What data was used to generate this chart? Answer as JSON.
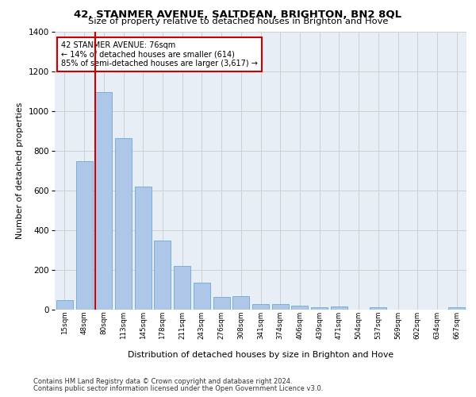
{
  "title1": "42, STANMER AVENUE, SALTDEAN, BRIGHTON, BN2 8QL",
  "title2": "Size of property relative to detached houses in Brighton and Hove",
  "xlabel": "Distribution of detached houses by size in Brighton and Hove",
  "ylabel": "Number of detached properties",
  "categories": [
    "15sqm",
    "48sqm",
    "80sqm",
    "113sqm",
    "145sqm",
    "178sqm",
    "211sqm",
    "243sqm",
    "276sqm",
    "308sqm",
    "341sqm",
    "374sqm",
    "406sqm",
    "439sqm",
    "471sqm",
    "504sqm",
    "537sqm",
    "569sqm",
    "602sqm",
    "634sqm",
    "667sqm"
  ],
  "values": [
    50,
    750,
    1095,
    865,
    620,
    350,
    220,
    135,
    65,
    70,
    30,
    30,
    20,
    13,
    15,
    0,
    12,
    0,
    0,
    0,
    12
  ],
  "bar_color": "#aec6e8",
  "bar_edge_color": "#6aaad4",
  "vline_color": "#cc0000",
  "annotation_text": "42 STANMER AVENUE: 76sqm\n← 14% of detached houses are smaller (614)\n85% of semi-detached houses are larger (3,617) →",
  "annotation_box_color": "#cc0000",
  "annotation_box_fill": "#ffffff",
  "ylim": [
    0,
    1400
  ],
  "yticks": [
    0,
    200,
    400,
    600,
    800,
    1000,
    1200,
    1400
  ],
  "grid_color": "#d0d0d0",
  "bg_color": "#e8eef5",
  "footnote1": "Contains HM Land Registry data © Crown copyright and database right 2024.",
  "footnote2": "Contains public sector information licensed under the Open Government Licence v3.0."
}
